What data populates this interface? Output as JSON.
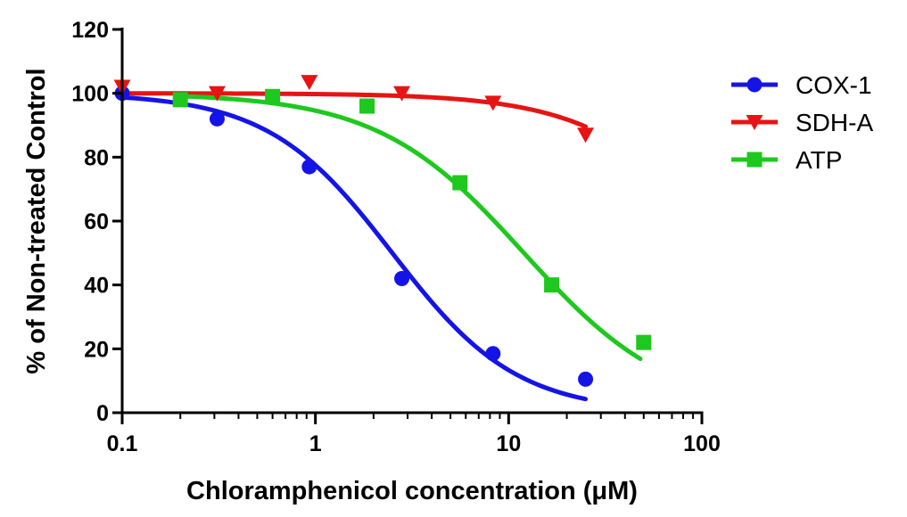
{
  "chart_data": {
    "type": "scatter",
    "title": "",
    "xlabel": "Chloramphenicol concentration (μM)",
    "ylabel": "% of Non-treated Control",
    "xscale": "log",
    "xlim": [
      0.1,
      100
    ],
    "ylim": [
      0,
      120
    ],
    "x_ticks": [
      "0.1",
      "1",
      "10",
      "100"
    ],
    "y_ticks": [
      "0",
      "20",
      "40",
      "60",
      "80",
      "100",
      "120"
    ],
    "grid": false,
    "legend_position": "right",
    "series": [
      {
        "name": "COX-1",
        "color": "#1414e6",
        "marker": "circle",
        "points": [
          [
            0.1,
            100
          ],
          [
            0.31,
            92
          ],
          [
            0.93,
            77
          ],
          [
            2.8,
            42
          ],
          [
            8.3,
            18.5
          ],
          [
            25,
            10.5
          ]
        ],
        "fit": {
          "top": 100,
          "bottom": 0,
          "ec50": 2.5,
          "hill": 1.35,
          "x_range": [
            0.1,
            25
          ]
        }
      },
      {
        "name": "SDH-A",
        "color": "#e61414",
        "marker": "triangle-down",
        "points": [
          [
            0.1,
            102
          ],
          [
            0.31,
            100
          ],
          [
            0.93,
            103.5
          ],
          [
            2.8,
            100
          ],
          [
            8.3,
            97
          ],
          [
            25,
            87
          ]
        ],
        "fit": {
          "top": 100,
          "bottom": 0,
          "ec50": 150,
          "hill": 1.2,
          "x_range": [
            0.1,
            25
          ]
        }
      },
      {
        "name": "ATP",
        "color": "#1ec81e",
        "marker": "square",
        "points": [
          [
            0.2,
            98
          ],
          [
            0.6,
            99
          ],
          [
            1.85,
            96
          ],
          [
            5.6,
            72
          ],
          [
            16.7,
            40
          ],
          [
            50,
            22
          ]
        ],
        "fit": {
          "top": 100,
          "bottom": 0,
          "ec50": 12,
          "hill": 1.15,
          "x_range": [
            0.2,
            48
          ]
        }
      }
    ]
  }
}
